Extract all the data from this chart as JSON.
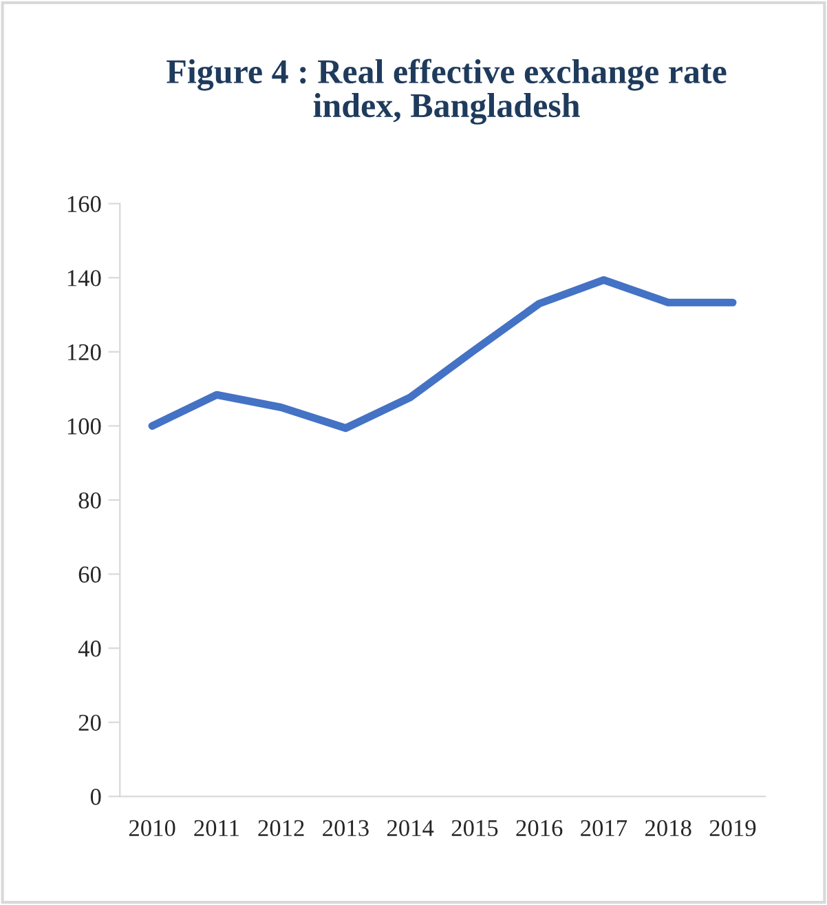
{
  "chart_data": {
    "type": "line",
    "title": "Figure 4 : Real effective exchange rate\nindex, Bangladesh",
    "categories": [
      "2010",
      "2011",
      "2012",
      "2013",
      "2014",
      "2015",
      "2016",
      "2017",
      "2018",
      "2019"
    ],
    "series": [
      {
        "color": "#4472c4",
        "values": [
          100,
          108.4,
          105,
          99.4,
          107.7,
          120.5,
          133,
          139.4,
          133.3,
          133.3
        ]
      }
    ],
    "ylim": [
      0,
      160
    ],
    "yticks": [
      0,
      20,
      40,
      60,
      80,
      100,
      120,
      140,
      160
    ],
    "grid": false,
    "marker": "none",
    "line_style": "solid"
  }
}
